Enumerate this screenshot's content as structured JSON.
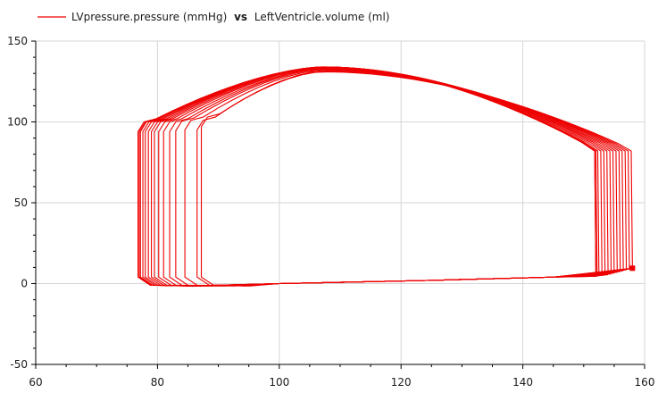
{
  "chart_data": {
    "type": "line",
    "title": "",
    "xlabel": "",
    "ylabel": "",
    "xlim": [
      60,
      160
    ],
    "ylim": [
      -50,
      150
    ],
    "x_ticks": [
      60,
      80,
      100,
      120,
      140,
      160
    ],
    "y_ticks": [
      -50,
      0,
      50,
      100,
      150
    ],
    "x_tick_labels": [
      "60",
      "80",
      "100",
      "120",
      "140",
      "160"
    ],
    "y_tick_labels": [
      "-50",
      "0",
      "50",
      "100",
      "150"
    ],
    "grid": true,
    "legend": {
      "placement": "top-left",
      "y_name": "LVpressure.pressure (mmHg)",
      "connector": "vs",
      "x_name": "LeftVentricle.volume (ml)"
    },
    "color": "#ee0000",
    "series": [
      {
        "name": "LVpressure.pressure (mmHg) vs LeftVentricle.volume (ml)",
        "loops": [
          {
            "edv": 158,
            "esv": 87.2,
            "p_ed": 9.5,
            "p_ejection_start": 82,
            "p_ejection_end": 105,
            "p_peak": 131
          },
          {
            "edv": 157.5,
            "esv": 86.5,
            "p_ed": 9,
            "p_ejection_start": 82,
            "p_ejection_end": 103,
            "p_peak": 131.5
          },
          {
            "edv": 157,
            "esv": 84.5,
            "p_ed": 8.5,
            "p_ejection_start": 82,
            "p_ejection_end": 103,
            "p_peak": 132
          },
          {
            "edv": 156.5,
            "esv": 83,
            "p_ed": 8,
            "p_ejection_start": 82,
            "p_ejection_end": 102.5,
            "p_peak": 132.5
          },
          {
            "edv": 156,
            "esv": 82,
            "p_ed": 7.5,
            "p_ejection_start": 82,
            "p_ejection_end": 102,
            "p_peak": 133
          },
          {
            "edv": 155.5,
            "esv": 81,
            "p_ed": 7,
            "p_ejection_start": 82,
            "p_ejection_end": 102,
            "p_peak": 133
          },
          {
            "edv": 155,
            "esv": 80.2,
            "p_ed": 6.5,
            "p_ejection_start": 82,
            "p_ejection_end": 102,
            "p_peak": 133.5
          },
          {
            "edv": 154.5,
            "esv": 79.5,
            "p_ed": 6,
            "p_ejection_start": 82,
            "p_ejection_end": 102,
            "p_peak": 133.5
          },
          {
            "edv": 154,
            "esv": 79,
            "p_ed": 5.5,
            "p_ejection_start": 82,
            "p_ejection_end": 102,
            "p_peak": 134
          },
          {
            "edv": 153.5,
            "esv": 78.5,
            "p_ed": 5.2,
            "p_ejection_start": 82,
            "p_ejection_end": 102,
            "p_peak": 134
          },
          {
            "edv": 153,
            "esv": 78,
            "p_ed": 5,
            "p_ejection_start": 82,
            "p_ejection_end": 102,
            "p_peak": 134
          },
          {
            "edv": 152.5,
            "esv": 77.6,
            "p_ed": 4.8,
            "p_ejection_start": 82,
            "p_ejection_end": 102,
            "p_peak": 134
          },
          {
            "edv": 152.2,
            "esv": 77.2,
            "p_ed": 4.6,
            "p_ejection_start": 82,
            "p_ejection_end": 102,
            "p_peak": 134
          },
          {
            "edv": 152,
            "esv": 77,
            "p_ed": 4.5,
            "p_ejection_start": 82,
            "p_ejection_end": 102,
            "p_peak": 134
          },
          {
            "edv": 152,
            "esv": 76.8,
            "p_ed": 4.5,
            "p_ejection_start": 82,
            "p_ejection_end": 102,
            "p_peak": 134
          }
        ]
      }
    ]
  }
}
